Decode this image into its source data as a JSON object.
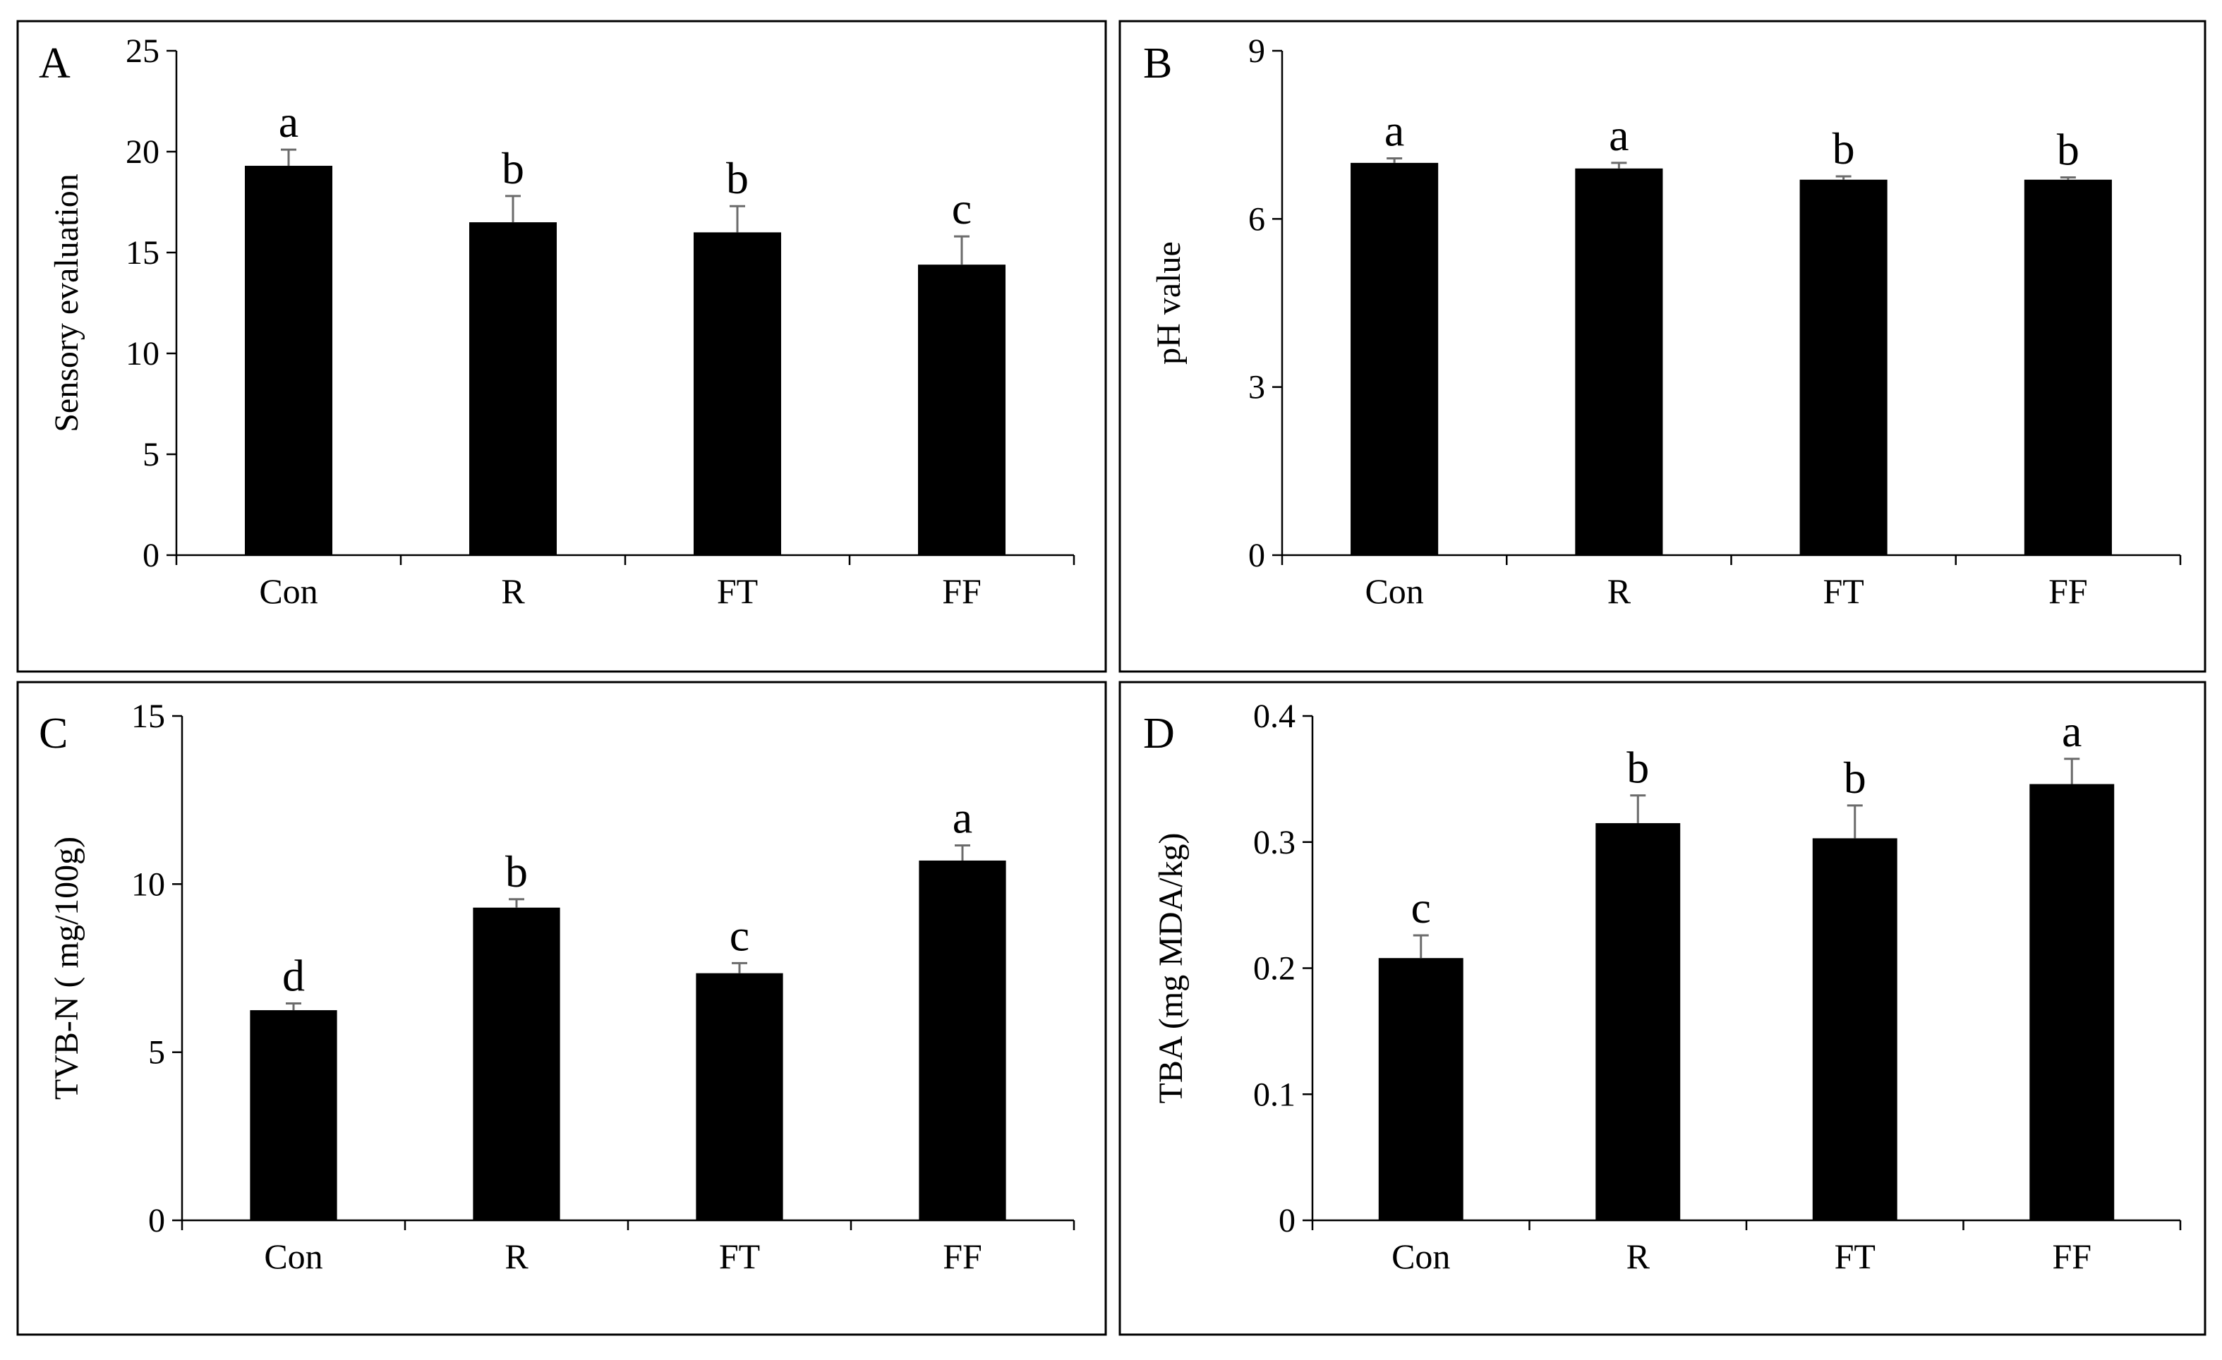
{
  "chart_data": [
    {
      "panel": "A",
      "type": "bar",
      "ylabel": "Sensory evaluation",
      "categories": [
        "Con",
        "R",
        "FT",
        "FF"
      ],
      "values": [
        19.3,
        16.5,
        16.0,
        14.4
      ],
      "errors": [
        0.8,
        1.3,
        1.3,
        1.4
      ],
      "significance": [
        "a",
        "b",
        "b",
        "c"
      ],
      "ylim": [
        0,
        25
      ],
      "yticks": [
        0,
        5,
        10,
        15,
        20,
        25
      ],
      "ytick_labels": [
        "0",
        "5",
        "10",
        "15",
        "20",
        "25"
      ]
    },
    {
      "panel": "B",
      "type": "bar",
      "ylabel": "pH value",
      "categories": [
        "Con",
        "R",
        "FT",
        "FF"
      ],
      "values": [
        7.0,
        6.9,
        6.7,
        6.7
      ],
      "errors": [
        0.08,
        0.1,
        0.06,
        0.04
      ],
      "significance": [
        "a",
        "a",
        "b",
        "b"
      ],
      "ylim": [
        0,
        9
      ],
      "yticks": [
        0,
        3,
        6,
        9
      ],
      "ytick_labels": [
        "0",
        "3",
        "6",
        "9"
      ]
    },
    {
      "panel": "C",
      "type": "bar",
      "ylabel": "TVB-N ( mg/100g)",
      "categories": [
        "Con",
        "R",
        "FT",
        "FF"
      ],
      "values": [
        6.25,
        9.3,
        7.35,
        10.7
      ],
      "errors": [
        0.2,
        0.25,
        0.3,
        0.45
      ],
      "significance": [
        "d",
        "b",
        "c",
        "a"
      ],
      "ylim": [
        0,
        15
      ],
      "yticks": [
        0,
        5,
        10,
        15
      ],
      "ytick_labels": [
        "0",
        "5",
        "10",
        "15"
      ]
    },
    {
      "panel": "D",
      "type": "bar",
      "ylabel": "TBA (mg MDA/kg)",
      "categories": [
        "Con",
        "R",
        "FT",
        "FF"
      ],
      "values": [
        0.208,
        0.315,
        0.303,
        0.346
      ],
      "errors": [
        0.018,
        0.022,
        0.026,
        0.02
      ],
      "significance": [
        "c",
        "b",
        "b",
        "a"
      ],
      "ylim": [
        0,
        0.4
      ],
      "yticks": [
        0,
        0.1,
        0.2,
        0.3,
        0.4
      ],
      "ytick_labels": [
        "0",
        "0.1",
        "0.2",
        "0.3",
        "0.4"
      ]
    }
  ]
}
